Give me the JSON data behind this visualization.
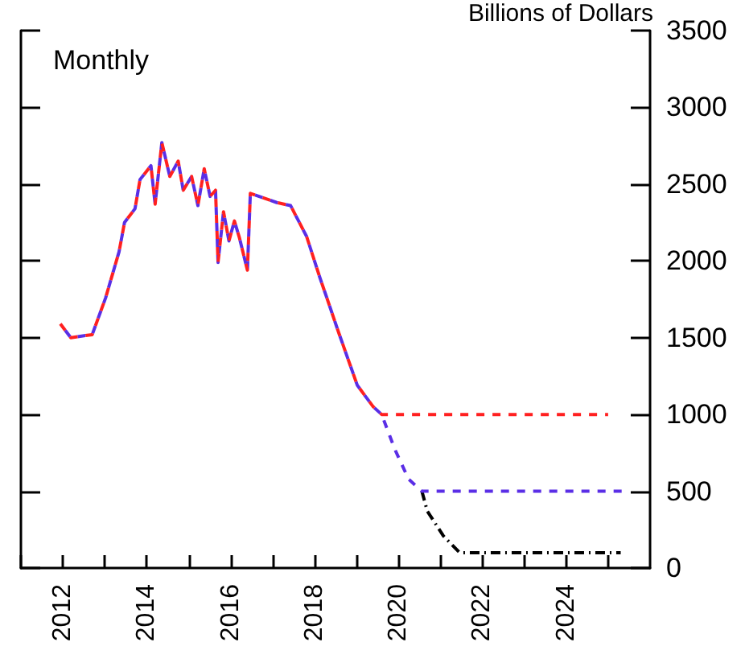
{
  "chart_data": {
    "type": "line",
    "ylabel": "Billions of Dollars",
    "annotations": [
      "Monthly"
    ],
    "xlim": [
      2011,
      2026
    ],
    "xticks": [
      {
        "value": 2011,
        "label": null
      },
      2012,
      {
        "value": 2013,
        "label": null
      },
      2014,
      {
        "value": 2015,
        "label": null
      },
      2016,
      {
        "value": 2017,
        "label": null
      },
      2018,
      {
        "value": 2019,
        "label": null
      },
      2020,
      {
        "value": 2021,
        "label": null
      },
      2022,
      {
        "value": 2023,
        "label": null
      },
      2024,
      {
        "value": 2025,
        "label": null
      }
    ],
    "ylim": [
      0,
      3500
    ],
    "yticks": [
      0,
      500,
      1000,
      1500,
      2000,
      2500,
      3000,
      3500
    ],
    "grid": false,
    "marker": "none",
    "series": [
      {
        "color": "#000000",
        "line_style": "dotted",
        "x": [
          2020.56,
          2020.69,
          2021.07,
          2021.46,
          2025.3
        ],
        "values": [
          500,
          370,
          210,
          100,
          100
        ]
      },
      {
        "color": "#5a2ee6",
        "line_style": "dashed",
        "x": [
          2011.94,
          2012.19,
          2012.7,
          2013.02,
          2013.34,
          2013.47,
          2013.72,
          2013.84,
          2014.1,
          2014.2,
          2014.36,
          2014.55,
          2014.75,
          2014.87,
          2015.07,
          2015.22,
          2015.37,
          2015.51,
          2015.64,
          2015.7,
          2015.83,
          2015.96,
          2016.09,
          2016.21,
          2016.4,
          2016.47,
          2017.1,
          2017.43,
          2017.81,
          2018.13,
          2018.58,
          2019.02,
          2019.4,
          2019.6,
          2019.92,
          2020.24,
          2020.56,
          2025.4
        ],
        "values": [
          1590,
          1500,
          1520,
          1760,
          2060,
          2250,
          2340,
          2530,
          2620,
          2370,
          2770,
          2550,
          2650,
          2460,
          2550,
          2360,
          2600,
          2420,
          2460,
          1990,
          2320,
          2130,
          2260,
          2150,
          1940,
          2440,
          2380,
          2360,
          2160,
          1890,
          1530,
          1190,
          1050,
          1000,
          770,
          580,
          500,
          500
        ]
      },
      {
        "color": "#ff2020",
        "line_style": "dashed",
        "x": [
          2011.94,
          2012.19,
          2012.7,
          2013.02,
          2013.34,
          2013.47,
          2013.72,
          2013.84,
          2014.1,
          2014.2,
          2014.36,
          2014.55,
          2014.75,
          2014.87,
          2015.07,
          2015.22,
          2015.37,
          2015.51,
          2015.64,
          2015.7,
          2015.83,
          2015.96,
          2016.09,
          2016.21,
          2016.4,
          2016.47,
          2017.1,
          2017.43,
          2017.81,
          2018.13,
          2018.58,
          2019.02,
          2019.4,
          2019.6,
          2025.0
        ],
        "values": [
          1590,
          1500,
          1520,
          1760,
          2060,
          2250,
          2340,
          2530,
          2620,
          2370,
          2770,
          2550,
          2650,
          2460,
          2550,
          2360,
          2600,
          2420,
          2460,
          1990,
          2320,
          2130,
          2260,
          2150,
          1940,
          2440,
          2380,
          2360,
          2160,
          1890,
          1530,
          1190,
          1050,
          1000,
          1000
        ]
      }
    ]
  }
}
